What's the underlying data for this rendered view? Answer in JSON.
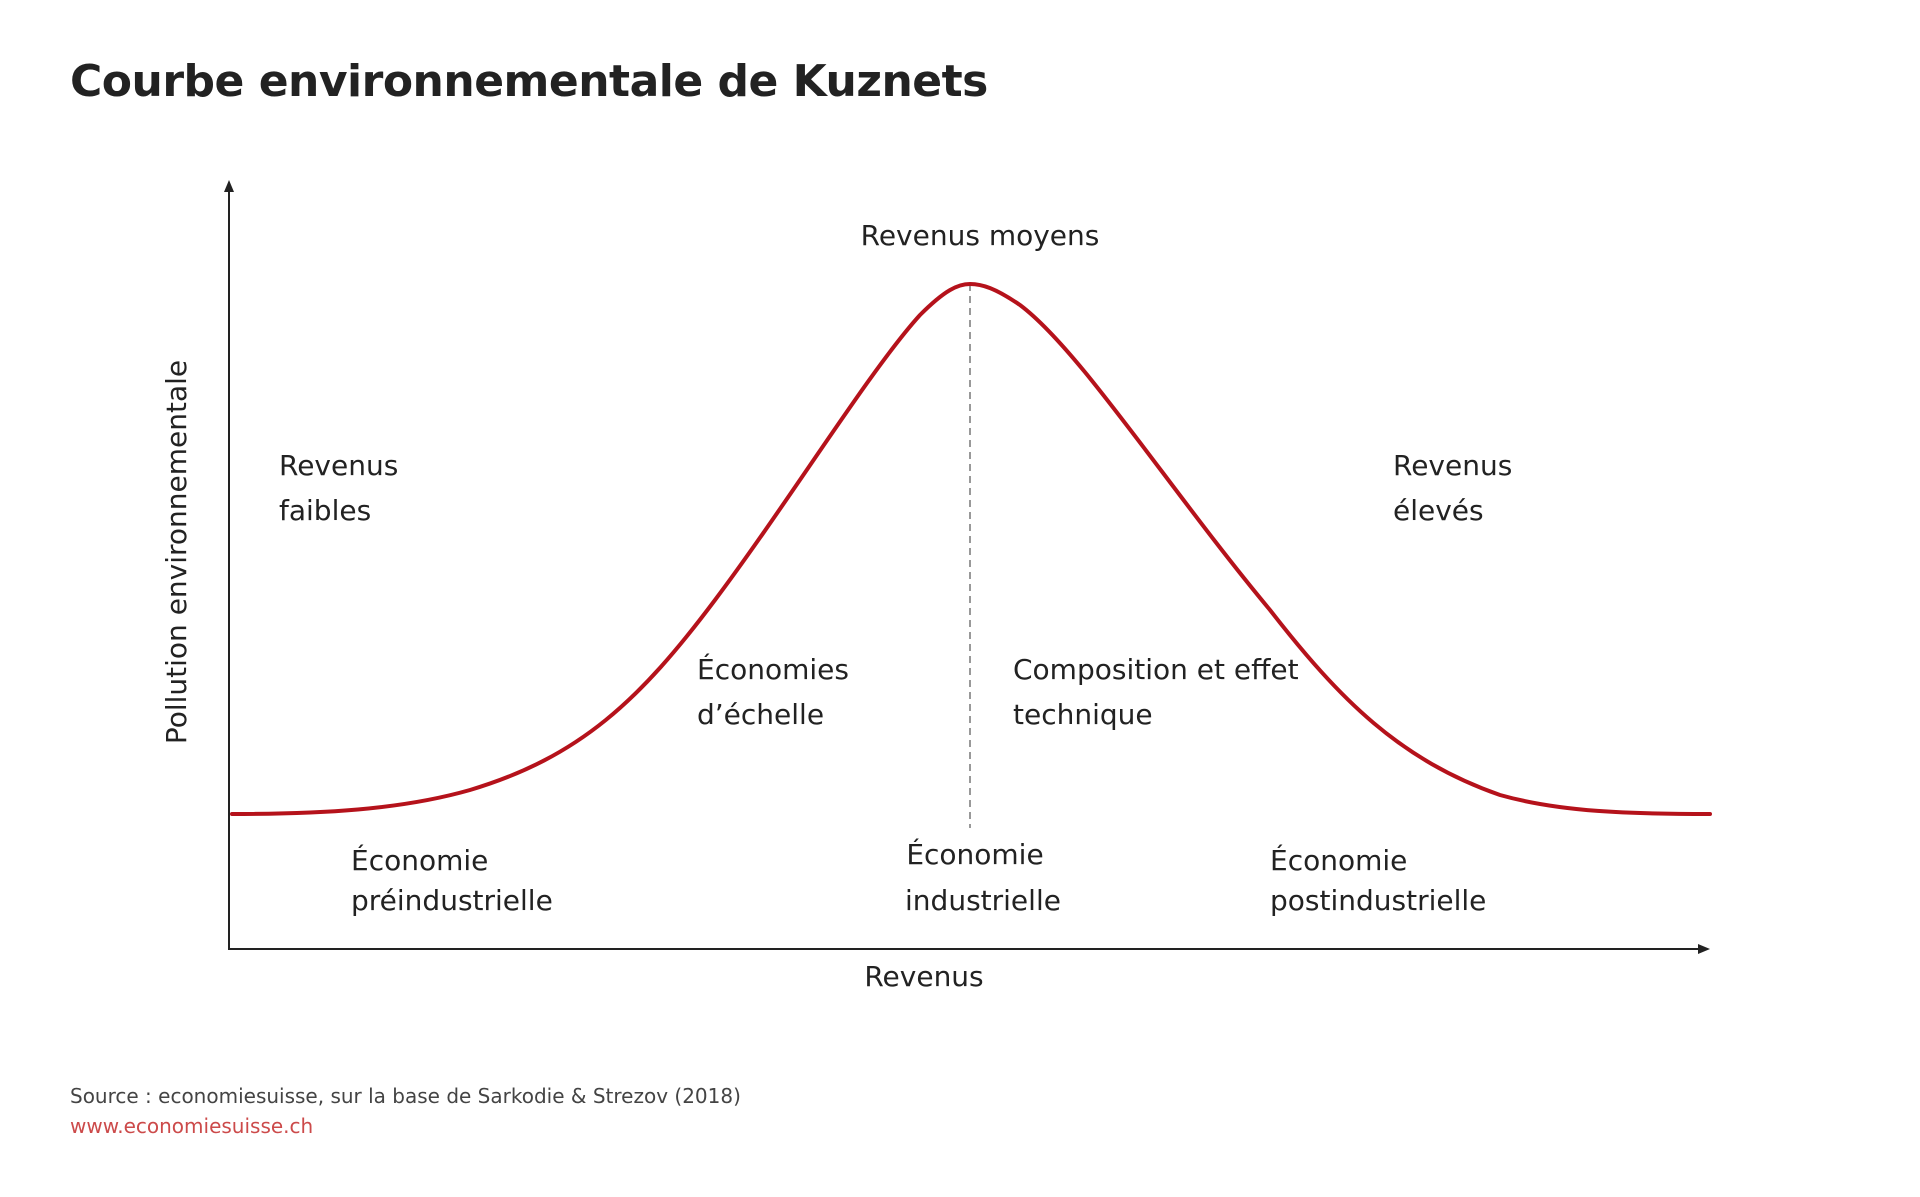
{
  "title": "Courbe environnementale de Kuznets",
  "axes": {
    "x_label": "Revenus",
    "y_label": "Pollution environnementale"
  },
  "income_levels": {
    "low": [
      "Revenus",
      "faibles"
    ],
    "middle": [
      "Revenus moyens"
    ],
    "high": [
      "Revenus",
      "élevés"
    ]
  },
  "economy_types": {
    "preindustrial": [
      "Économie",
      "préindustrielle"
    ],
    "industrial": [
      "Économie",
      "industrielle"
    ],
    "postindustrial": [
      "Économie",
      "postindustrielle"
    ]
  },
  "effects": {
    "scale": [
      "Économies",
      "d’échelle"
    ],
    "composition": [
      "Composition et effet",
      "technique"
    ]
  },
  "footer": {
    "source": "Source : economiesuisse, sur la base de Sarkodie & Strezov (2018)",
    "website": "www.economiesuisse.ch"
  },
  "colors": {
    "curve": "#b5121b",
    "axis": "#222222",
    "peak_line": "#999999",
    "website": "#cc4a4a"
  },
  "icons": [
    "y-axis-arrowhead",
    "x-axis-arrowhead"
  ]
}
